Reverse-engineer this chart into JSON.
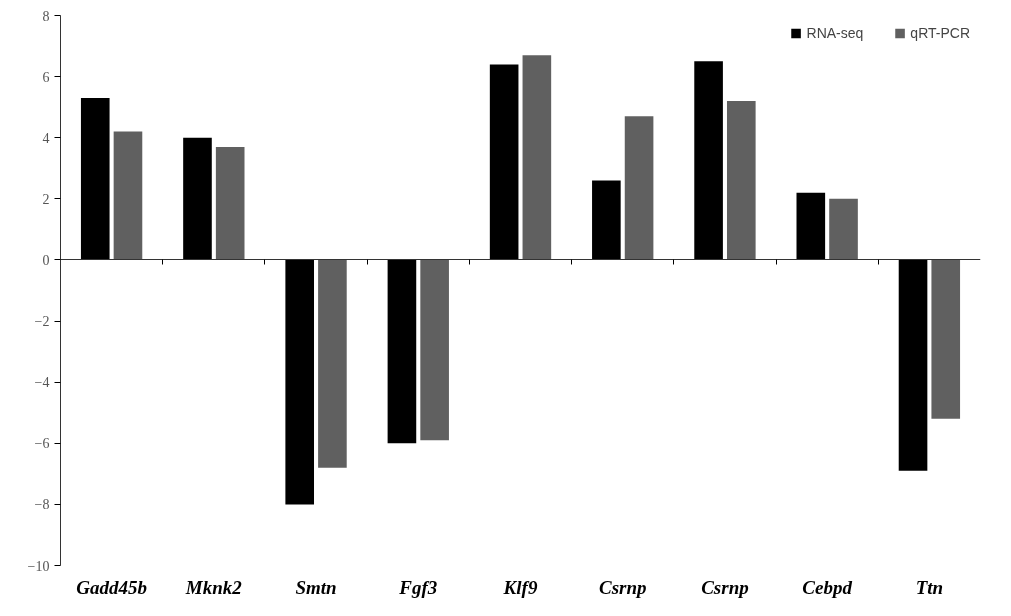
{
  "chart_data": {
    "type": "bar",
    "categories": [
      "Gadd45b",
      "Mknk2",
      "Smtn",
      "Fgf3",
      "Klf9",
      "Csrnp",
      "Csrnp",
      "Cebpd",
      "Ttn"
    ],
    "series": [
      {
        "name": "RNA-seq",
        "color": "#000000",
        "values": [
          5.3,
          4.0,
          -8.0,
          -6.0,
          6.4,
          2.6,
          6.5,
          2.2,
          -6.9
        ]
      },
      {
        "name": "qRT-PCR",
        "color": "#606060",
        "values": [
          4.2,
          3.7,
          -6.8,
          -5.9,
          6.7,
          4.7,
          5.2,
          2.0,
          -5.2
        ]
      }
    ],
    "ylim": [
      -10,
      8
    ],
    "yticks": [
      -10,
      -8,
      -6,
      -4,
      -2,
      0,
      2,
      4,
      6,
      8
    ],
    "legend": "top right"
  }
}
